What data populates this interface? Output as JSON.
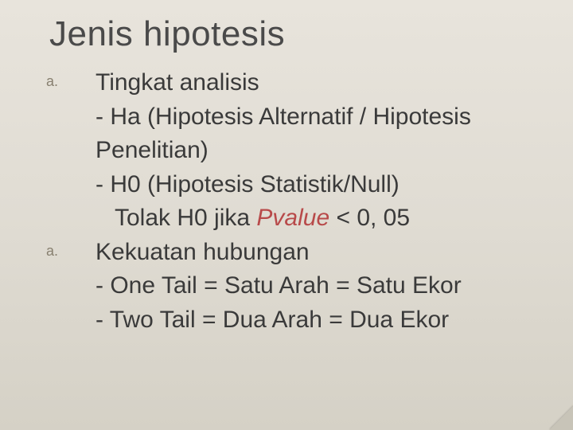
{
  "title": "Jenis hipotesis",
  "list_marker": "a.",
  "colors": {
    "background_top": "#e8e4dc",
    "background_bottom": "#d5d1c6",
    "title_color": "#4a4a4a",
    "body_color": "#3a3a3a",
    "marker_color": "#888070",
    "accent_color": "#b84a4a"
  },
  "typography": {
    "title_fontsize": 44,
    "body_fontsize": 30,
    "marker_fontsize": 18,
    "font_family": "Verdana"
  },
  "items": [
    {
      "label": "Tingkat analisis",
      "sublines": [
        {
          "text": "- Ha (Hipotesis Alternatif / Hipotesis",
          "indent": false
        },
        {
          "text": "Penelitian)",
          "indent": false
        },
        {
          "text": "- H0 (Hipotesis Statistik/Null)",
          "indent": false
        },
        {
          "prefix": "Tolak H0 jika ",
          "accent": "Pvalue",
          "suffix": " < 0, 05",
          "indent": true
        }
      ]
    },
    {
      "label": "Kekuatan hubungan",
      "sublines": [
        {
          "text": "- One Tail = Satu Arah = Satu Ekor",
          "indent": false
        },
        {
          "text": "- Two Tail = Dua Arah = Dua Ekor",
          "indent": false
        }
      ]
    }
  ]
}
